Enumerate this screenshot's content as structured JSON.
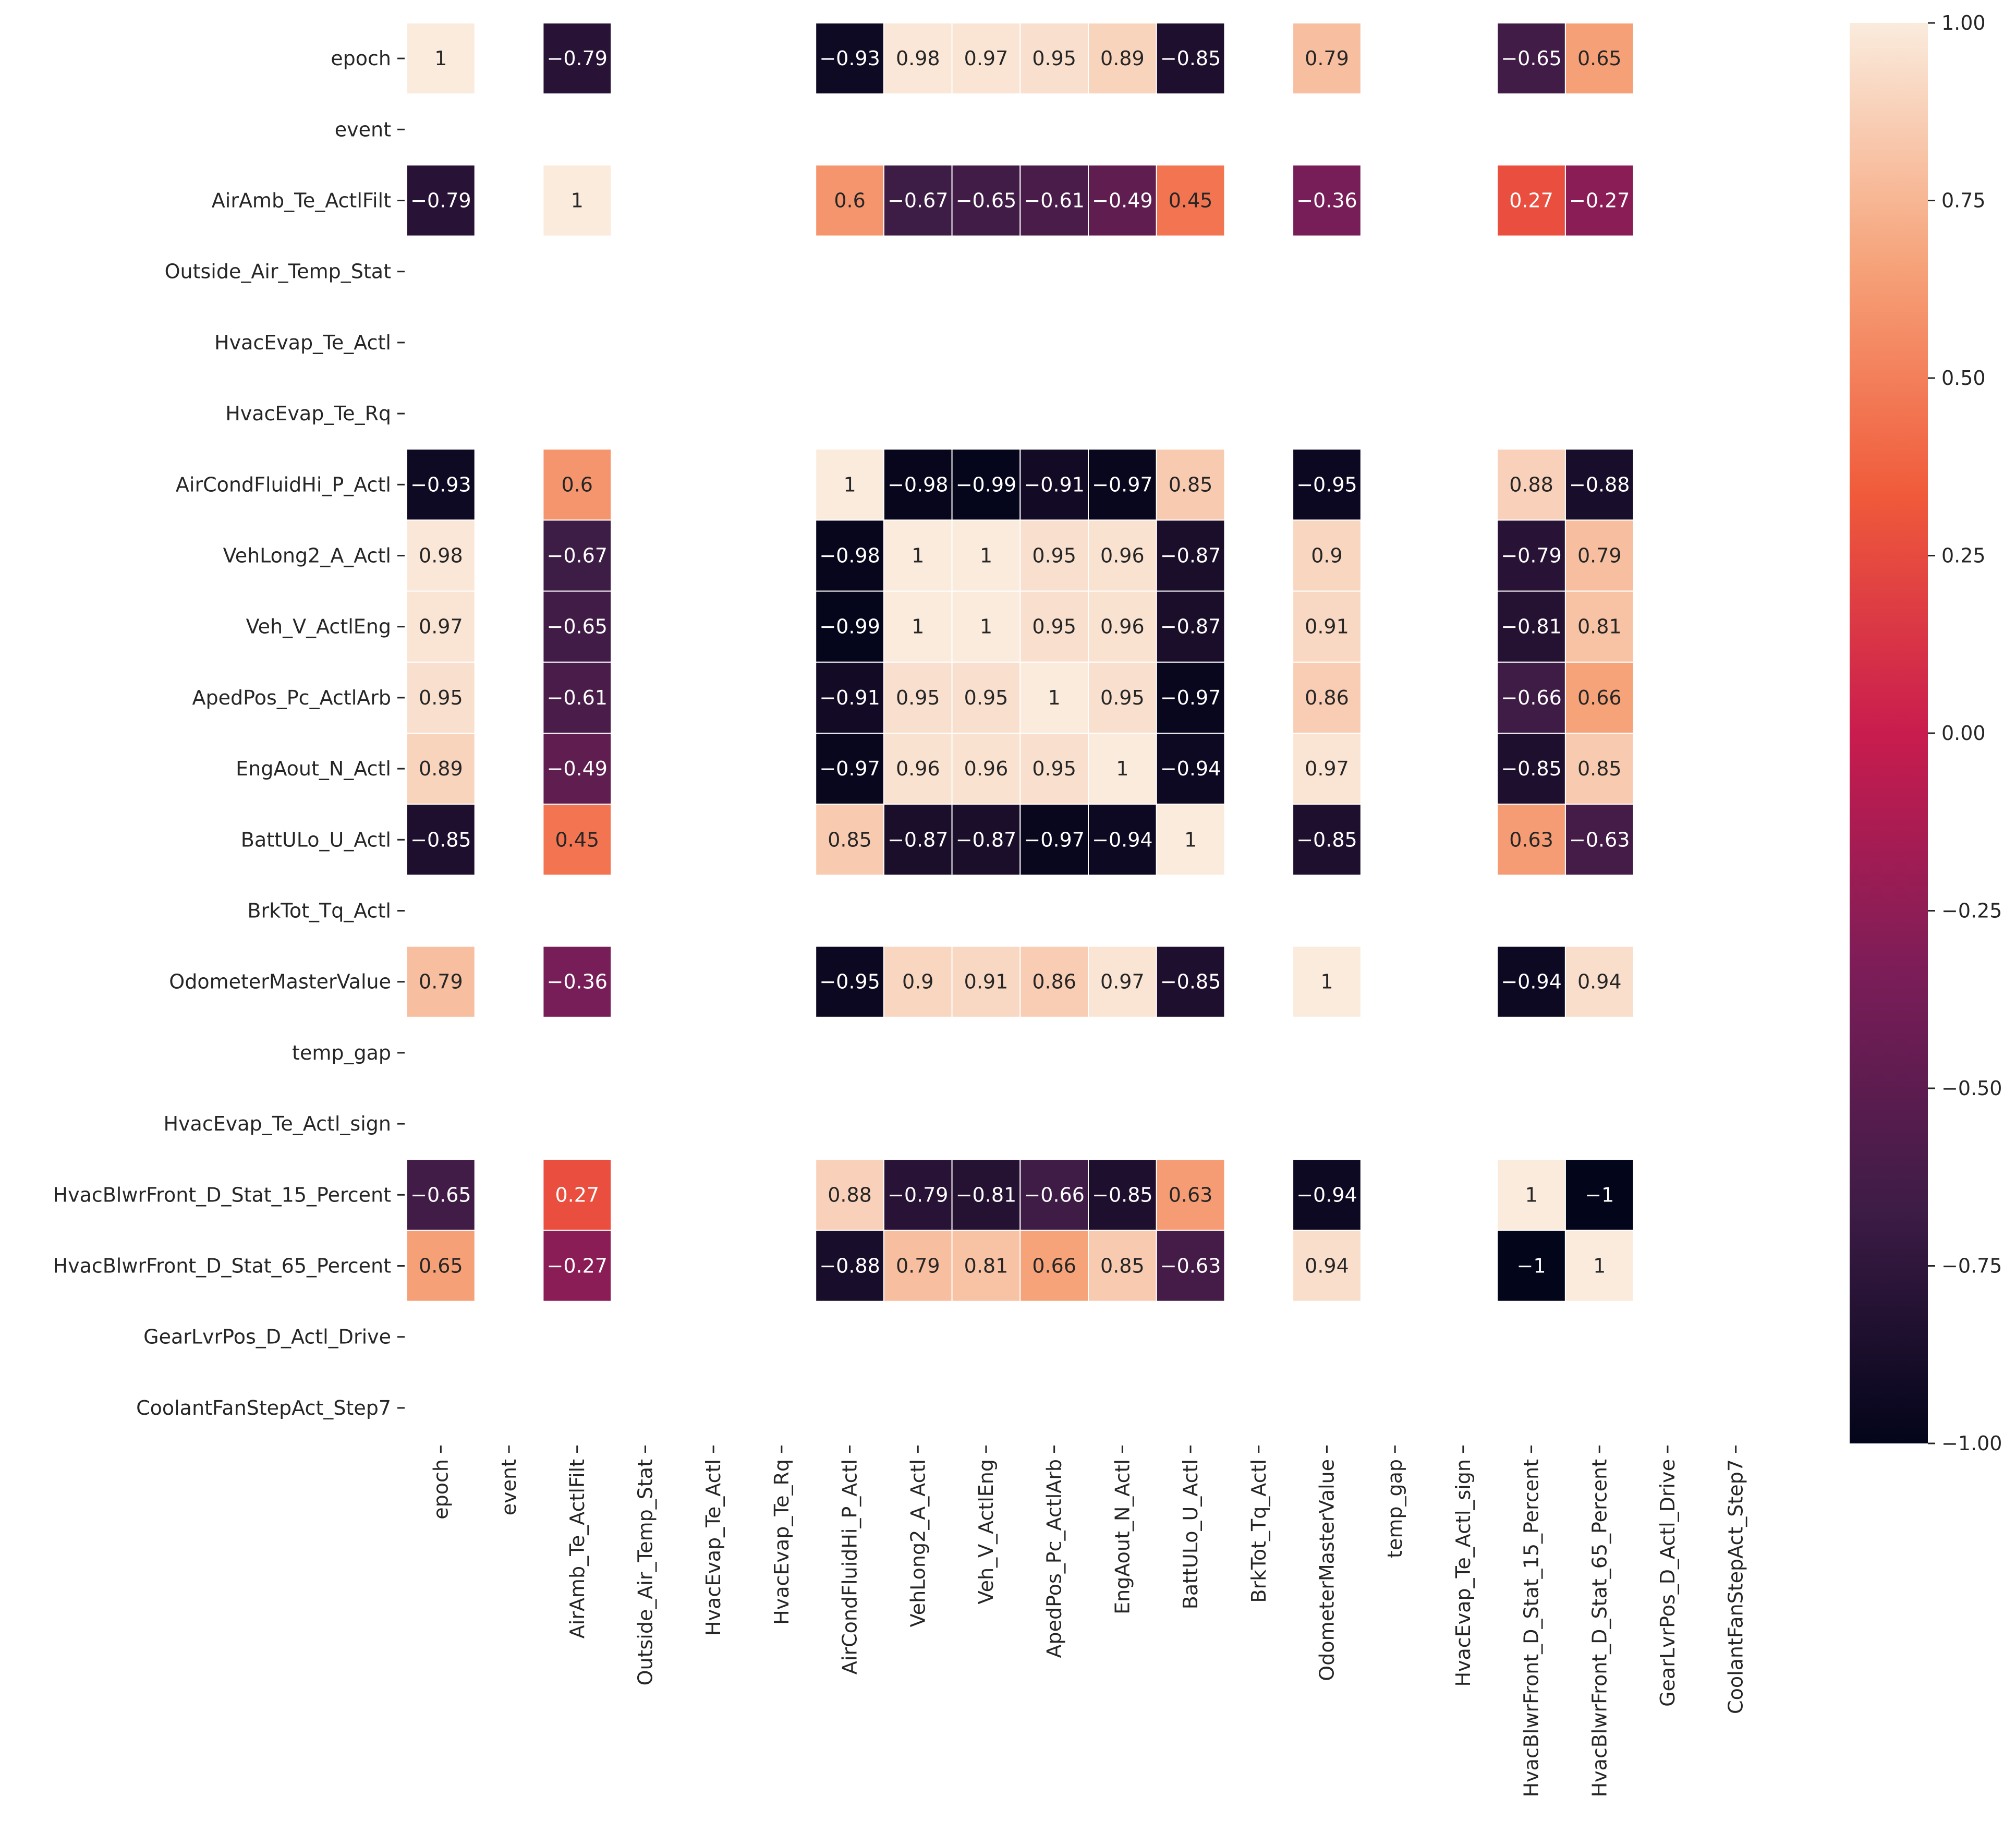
{
  "chart_data": {
    "type": "heatmap",
    "title": "",
    "xlabel": "",
    "ylabel": "",
    "labels": [
      "epoch",
      "event",
      "AirAmb_Te_ActlFilt",
      "Outside_Air_Temp_Stat",
      "HvacEvap_Te_Actl",
      "HvacEvap_Te_Rq",
      "AirCondFluidHi_P_Actl",
      "VehLong2_A_Actl",
      "Veh_V_ActlEng",
      "ApedPos_Pc_ActlArb",
      "EngAout_N_Actl",
      "BattULo_U_Actl",
      "BrkTot_Tq_Actl",
      "OdometerMasterValue",
      "temp_gap",
      "HvacEvap_Te_Actl_sign",
      "HvacBlwrFront_D_Stat_15_Percent",
      "HvacBlwrFront_D_Stat_65_Percent",
      "GearLvrPos_D_Actl_Drive",
      "CoolantFanStepAct_Step7"
    ],
    "values": [
      [
        1,
        null,
        -0.79,
        null,
        null,
        null,
        -0.93,
        0.98,
        0.97,
        0.95,
        0.89,
        -0.85,
        null,
        0.79,
        null,
        null,
        -0.65,
        0.65,
        null,
        null
      ],
      [
        null,
        null,
        null,
        null,
        null,
        null,
        null,
        null,
        null,
        null,
        null,
        null,
        null,
        null,
        null,
        null,
        null,
        null,
        null,
        null
      ],
      [
        -0.79,
        null,
        1,
        null,
        null,
        null,
        0.6,
        -0.67,
        -0.65,
        -0.61,
        -0.49,
        0.45,
        null,
        -0.36,
        null,
        null,
        0.27,
        -0.27,
        null,
        null
      ],
      [
        null,
        null,
        null,
        null,
        null,
        null,
        null,
        null,
        null,
        null,
        null,
        null,
        null,
        null,
        null,
        null,
        null,
        null,
        null,
        null
      ],
      [
        null,
        null,
        null,
        null,
        null,
        null,
        null,
        null,
        null,
        null,
        null,
        null,
        null,
        null,
        null,
        null,
        null,
        null,
        null,
        null
      ],
      [
        null,
        null,
        null,
        null,
        null,
        null,
        null,
        null,
        null,
        null,
        null,
        null,
        null,
        null,
        null,
        null,
        null,
        null,
        null,
        null
      ],
      [
        -0.93,
        null,
        0.6,
        null,
        null,
        null,
        1,
        -0.98,
        -0.99,
        -0.91,
        -0.97,
        0.85,
        null,
        -0.95,
        null,
        null,
        0.88,
        -0.88,
        null,
        null
      ],
      [
        0.98,
        null,
        -0.67,
        null,
        null,
        null,
        -0.98,
        1,
        1,
        0.95,
        0.96,
        -0.87,
        null,
        0.9,
        null,
        null,
        -0.79,
        0.79,
        null,
        null
      ],
      [
        0.97,
        null,
        -0.65,
        null,
        null,
        null,
        -0.99,
        1,
        1,
        0.95,
        0.96,
        -0.87,
        null,
        0.91,
        null,
        null,
        -0.81,
        0.81,
        null,
        null
      ],
      [
        0.95,
        null,
        -0.61,
        null,
        null,
        null,
        -0.91,
        0.95,
        0.95,
        1,
        0.95,
        -0.97,
        null,
        0.86,
        null,
        null,
        -0.66,
        0.66,
        null,
        null
      ],
      [
        0.89,
        null,
        -0.49,
        null,
        null,
        null,
        -0.97,
        0.96,
        0.96,
        0.95,
        1,
        -0.94,
        null,
        0.97,
        null,
        null,
        -0.85,
        0.85,
        null,
        null
      ],
      [
        -0.85,
        null,
        0.45,
        null,
        null,
        null,
        0.85,
        -0.87,
        -0.87,
        -0.97,
        -0.94,
        1,
        null,
        -0.85,
        null,
        null,
        0.63,
        -0.63,
        null,
        null
      ],
      [
        null,
        null,
        null,
        null,
        null,
        null,
        null,
        null,
        null,
        null,
        null,
        null,
        null,
        null,
        null,
        null,
        null,
        null,
        null,
        null
      ],
      [
        0.79,
        null,
        -0.36,
        null,
        null,
        null,
        -0.95,
        0.9,
        0.91,
        0.86,
        0.97,
        -0.85,
        null,
        1,
        null,
        null,
        -0.94,
        0.94,
        null,
        null
      ],
      [
        null,
        null,
        null,
        null,
        null,
        null,
        null,
        null,
        null,
        null,
        null,
        null,
        null,
        null,
        null,
        null,
        null,
        null,
        null,
        null
      ],
      [
        null,
        null,
        null,
        null,
        null,
        null,
        null,
        null,
        null,
        null,
        null,
        null,
        null,
        null,
        null,
        null,
        null,
        null,
        null,
        null
      ],
      [
        -0.65,
        null,
        0.27,
        null,
        null,
        null,
        0.88,
        -0.79,
        -0.81,
        -0.66,
        -0.85,
        0.63,
        null,
        -0.94,
        null,
        null,
        1,
        -1,
        null,
        null
      ],
      [
        0.65,
        null,
        -0.27,
        null,
        null,
        null,
        -0.88,
        0.79,
        0.81,
        0.66,
        0.85,
        -0.63,
        null,
        0.94,
        null,
        null,
        -1,
        1,
        null,
        null
      ],
      [
        null,
        null,
        null,
        null,
        null,
        null,
        null,
        null,
        null,
        null,
        null,
        null,
        null,
        null,
        null,
        null,
        null,
        null,
        null,
        null
      ],
      [
        null,
        null,
        null,
        null,
        null,
        null,
        null,
        null,
        null,
        null,
        null,
        null,
        null,
        null,
        null,
        null,
        null,
        null,
        null,
        null
      ]
    ],
    "vmin": -1,
    "vmax": 1,
    "colormap": "rocket",
    "colormap_stops": [
      "#03051a",
      "#3e1c46",
      "#7c1d58",
      "#c91c4e",
      "#f05a3a",
      "#f6a47b",
      "#faebdd"
    ],
    "colorbar_ticks": [
      1.0,
      0.75,
      0.5,
      0.25,
      0.0,
      -0.25,
      -0.5,
      -0.75,
      -1.0
    ],
    "colorbar_tick_labels": [
      "1.00",
      "0.75",
      "0.50",
      "0.25",
      "0.00",
      "−0.25",
      "−0.50",
      "−0.75",
      "−1.00"
    ],
    "annot": true,
    "cell_separator_color": "#ffffff",
    "annotation_dark_text": "#262626",
    "annotation_light_text": "#ffffff"
  }
}
